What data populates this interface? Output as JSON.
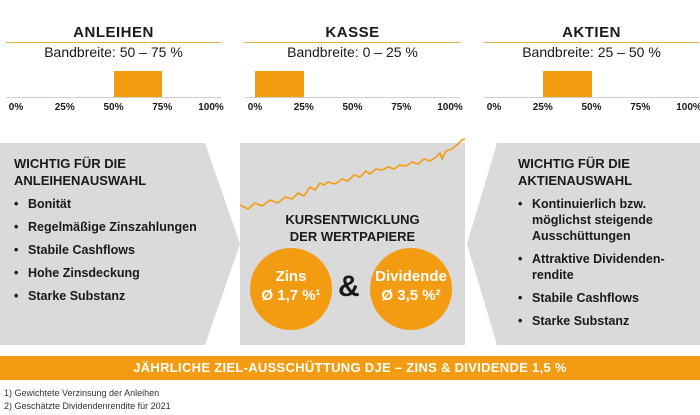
{
  "allocation": [
    {
      "title": "ANLEIHEN",
      "range": "Bandbreite: 50 – 75 %",
      "min_pct": 50,
      "max_pct": 75,
      "ticks": [
        "0%",
        "25%",
        "50%",
        "75%",
        "100%"
      ]
    },
    {
      "title": "KASSE",
      "range": "Bandbreite: 0 – 25 %",
      "min_pct": 0,
      "max_pct": 25,
      "ticks": [
        "0%",
        "25%",
        "50%",
        "75%",
        "100%"
      ]
    },
    {
      "title": "AKTIEN",
      "range": "Bandbreite: 25 – 50 %",
      "min_pct": 25,
      "max_pct": 50,
      "ticks": [
        "0%",
        "25%",
        "50%",
        "75%",
        "100%"
      ]
    }
  ],
  "left_panel": {
    "heading_line1": "WICHTIG FÜR DIE",
    "heading_line2": "ANLEIHENAUSWAHL",
    "items": [
      "Bonität",
      "Regelmäßige Zinszahlungen",
      "Stabile Cashflows",
      "Hohe Zinsdeckung",
      "Starke Substanz"
    ]
  },
  "right_panel": {
    "heading_line1": "WICHTIG FÜR DIE",
    "heading_line2": "AKTIENAUSWAHL",
    "items": [
      "Kontinuierlich bzw. möglichst steigende Ausschüttungen",
      "Attraktive Dividenden-rendite",
      "Stabile Cashflows",
      "Starke Substanz"
    ]
  },
  "middle": {
    "title_line1": "KURSENTWICKLUNG",
    "title_line2": "DER WERTPAPIERE",
    "zins_label": "Zins",
    "zins_value": "Ø 1,7 %¹",
    "amp": "&",
    "dividende_label": "Dividende",
    "dividende_value": "Ø 3,5 %²"
  },
  "banner": "JÄHRLICHE ZIEL-AUSSCHÜTTUNG DJE – ZINS & DIVIDENDE 1,5 %",
  "footnotes": [
    "1)  Gewichtete Verzinsung der Anleihen",
    "2) Geschätzte Dividendenrendite für 2021"
  ],
  "colors": {
    "accent": "#f39c12",
    "panel": "#dadada",
    "rule": "#e0b640"
  }
}
